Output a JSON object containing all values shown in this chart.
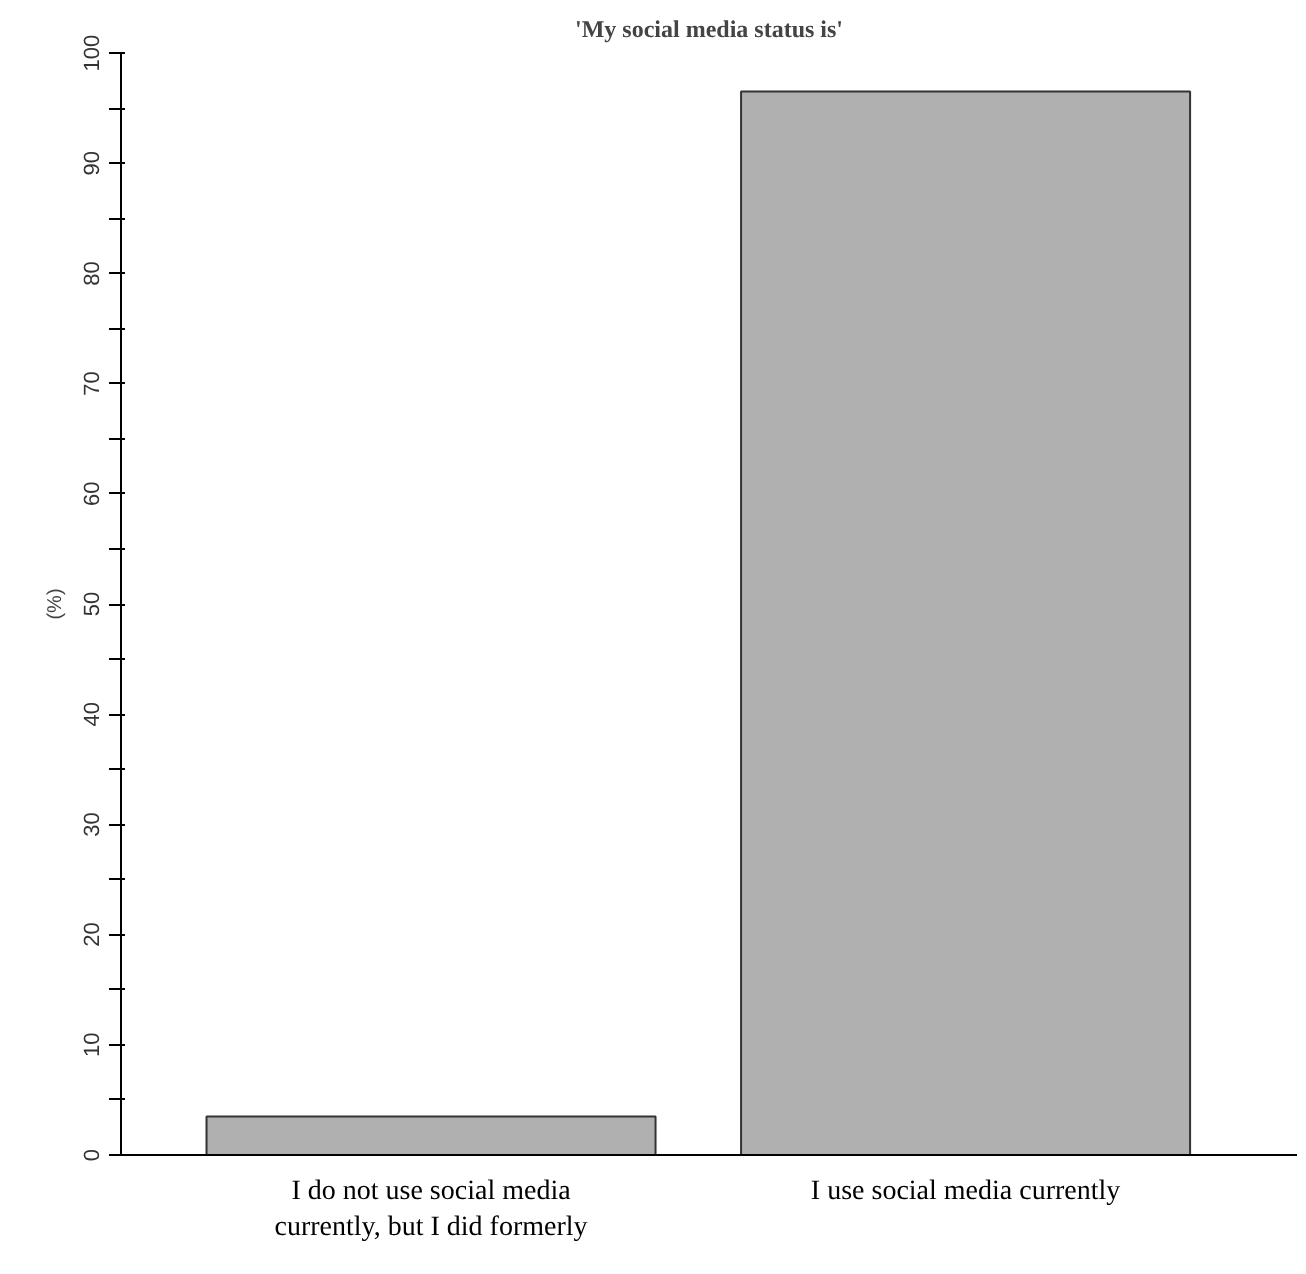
{
  "chart_data": {
    "type": "bar",
    "title": "'My social media status is'",
    "ylabel": "(%)",
    "categories": [
      "I do not use social media\ncurrently, but I did formerly",
      "I use social media currently"
    ],
    "values": [
      3.5,
      96.5
    ],
    "color": "#b0b0b0",
    "ylim": [
      0,
      100
    ],
    "yticks": [
      0,
      {
        "value": 5,
        "label": null
      },
      10,
      {
        "value": 15,
        "label": null
      },
      20,
      {
        "value": 25,
        "label": null
      },
      30,
      {
        "value": 35,
        "label": null
      },
      40,
      {
        "value": 45,
        "label": null
      },
      50,
      {
        "value": 55,
        "label": null
      },
      60,
      {
        "value": 65,
        "label": null
      },
      70,
      {
        "value": 75,
        "label": null
      },
      80,
      {
        "value": 85,
        "label": null
      },
      90,
      {
        "value": 95,
        "label": null
      },
      100
    ],
    "grid": false
  }
}
